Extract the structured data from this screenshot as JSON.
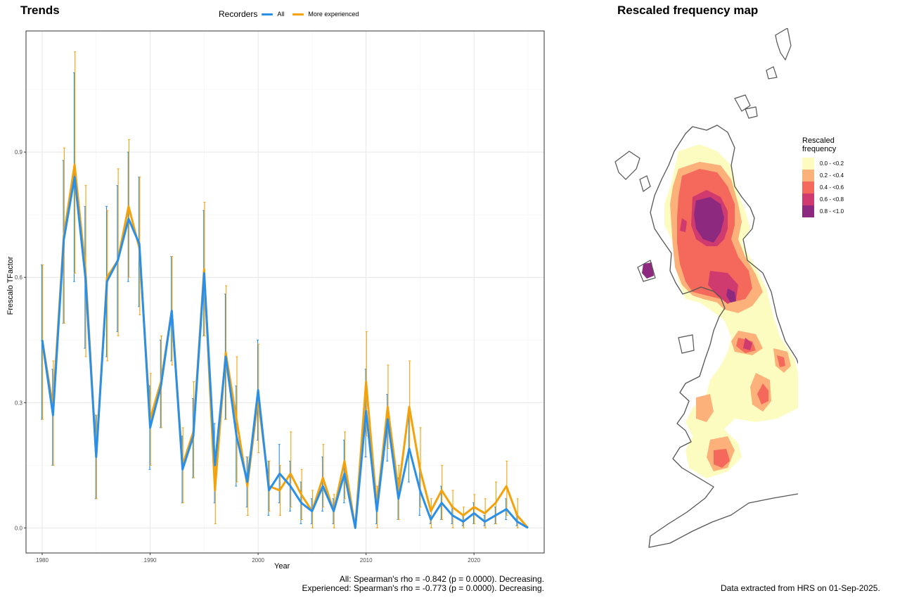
{
  "titles": {
    "trends": "Trends",
    "map": "Rescaled frequency map"
  },
  "recorder_legend": {
    "title": "Recorders",
    "items": [
      {
        "label": "All",
        "color": "#2a8fe8"
      },
      {
        "label": "More experienced",
        "color": "#f4a20c"
      }
    ]
  },
  "chart_data": {
    "type": "line",
    "xlabel": "Year",
    "ylabel": "Frescalo TFactor",
    "xlim": [
      1978.5,
      2026.5
    ],
    "ylim": [
      -0.06,
      1.19
    ],
    "xticks": [
      1980,
      1990,
      2000,
      2010,
      2020
    ],
    "yticks": [
      0.0,
      0.3,
      0.6,
      0.9
    ],
    "ytick_labels": [
      "0.0",
      "0.3",
      "0.6",
      "0.9"
    ],
    "grid": true,
    "legend_position": "top",
    "x": [
      1980,
      1981,
      1982,
      1983,
      1984,
      1985,
      1986,
      1987,
      1988,
      1989,
      1990,
      1991,
      1992,
      1993,
      1994,
      1995,
      1996,
      1997,
      1998,
      1999,
      2000,
      2001,
      2002,
      2003,
      2004,
      2005,
      2006,
      2007,
      2008,
      2009,
      2010,
      2011,
      2012,
      2013,
      2014,
      2015,
      2016,
      2017,
      2018,
      2019,
      2020,
      2021,
      2022,
      2023,
      2024,
      2025
    ],
    "series": [
      {
        "name": "All",
        "color": "#2a8fe8",
        "values": [
          0.45,
          0.27,
          0.69,
          0.84,
          0.6,
          0.17,
          0.59,
          0.64,
          0.74,
          0.68,
          0.24,
          0.34,
          0.52,
          0.14,
          0.22,
          0.61,
          0.15,
          0.41,
          0.22,
          0.11,
          0.33,
          0.09,
          0.13,
          0.1,
          0.06,
          0.04,
          0.1,
          0.04,
          0.13,
          0.0,
          0.28,
          0.04,
          0.26,
          0.07,
          0.19,
          0.09,
          0.02,
          0.06,
          0.03,
          0.015,
          0.035,
          0.015,
          0.03,
          0.045,
          0.015,
          0.0
        ],
        "lower": [
          0.26,
          0.15,
          0.49,
          0.59,
          0.43,
          0.07,
          0.41,
          0.47,
          0.59,
          0.53,
          0.14,
          0.24,
          0.4,
          0.06,
          0.12,
          0.46,
          0.06,
          0.26,
          0.1,
          0.05,
          0.21,
          0.03,
          0.06,
          0.04,
          0.01,
          0.01,
          0.04,
          0.01,
          0.06,
          0.0,
          0.17,
          0.01,
          0.16,
          0.02,
          0.11,
          0.03,
          0.01,
          0.02,
          0.01,
          0.005,
          0.01,
          0.005,
          0.01,
          0.02,
          0.005,
          0.0
        ],
        "upper": [
          0.63,
          0.38,
          0.88,
          1.09,
          0.77,
          0.27,
          0.77,
          0.82,
          0.9,
          0.84,
          0.34,
          0.45,
          0.65,
          0.22,
          0.31,
          0.76,
          0.25,
          0.56,
          0.34,
          0.17,
          0.45,
          0.16,
          0.2,
          0.16,
          0.11,
          0.07,
          0.17,
          0.07,
          0.21,
          0.0,
          0.38,
          0.08,
          0.32,
          0.12,
          0.27,
          0.15,
          0.03,
          0.1,
          0.05,
          0.03,
          0.06,
          0.03,
          0.05,
          0.07,
          0.03,
          0.0
        ]
      },
      {
        "name": "More experienced",
        "color": "#f4a20c",
        "values": [
          0.45,
          0.29,
          0.7,
          0.87,
          0.62,
          0.17,
          0.6,
          0.64,
          0.77,
          0.67,
          0.26,
          0.35,
          0.52,
          0.15,
          0.23,
          0.62,
          0.09,
          0.42,
          0.26,
          0.1,
          0.31,
          0.1,
          0.09,
          0.13,
          0.08,
          0.04,
          0.12,
          0.04,
          0.16,
          0.0,
          0.35,
          0.05,
          0.29,
          0.09,
          0.29,
          0.14,
          0.04,
          0.09,
          0.05,
          0.03,
          0.05,
          0.035,
          0.06,
          0.1,
          0.03,
          0.0
        ],
        "lower": [
          0.26,
          0.15,
          0.49,
          0.61,
          0.41,
          0.07,
          0.4,
          0.46,
          0.6,
          0.51,
          0.15,
          0.24,
          0.39,
          0.06,
          0.12,
          0.46,
          0.01,
          0.26,
          0.11,
          0.03,
          0.18,
          0.04,
          0.03,
          0.05,
          0.02,
          0.0,
          0.05,
          0.0,
          0.07,
          0.0,
          0.22,
          0.0,
          0.19,
          0.02,
          0.18,
          0.05,
          0.0,
          0.02,
          0.0,
          0.0,
          0.01,
          0.0,
          0.01,
          0.03,
          0.0,
          0.0
        ],
        "upper": [
          0.63,
          0.4,
          0.91,
          1.14,
          0.82,
          0.27,
          0.76,
          0.86,
          0.93,
          0.84,
          0.37,
          0.46,
          0.65,
          0.24,
          0.35,
          0.78,
          0.18,
          0.58,
          0.41,
          0.17,
          0.44,
          0.16,
          0.15,
          0.23,
          0.14,
          0.09,
          0.2,
          0.08,
          0.23,
          0.0,
          0.47,
          0.1,
          0.39,
          0.15,
          0.4,
          0.24,
          0.07,
          0.15,
          0.09,
          0.05,
          0.08,
          0.07,
          0.11,
          0.16,
          0.07,
          0.0
        ]
      }
    ]
  },
  "stats": {
    "all": "All: Spearman's rho = -0.842 (p = 0.0000). Decreasing.",
    "experienced": "Experienced: Spearman's rho = -0.773 (p = 0.0000). Decreasing."
  },
  "map_legend": {
    "title": "Rescaled frequency",
    "items": [
      {
        "label": "0.0 - <0.2",
        "color": "#fdfcc0"
      },
      {
        "label": "0.2 - <0.4",
        "color": "#fcb17a"
      },
      {
        "label": "0.4 - <0.6",
        "color": "#f4695c"
      },
      {
        "label": "0.6 - <0.8",
        "color": "#cf3a6f"
      },
      {
        "label": "0.8 - <1.0",
        "color": "#8d2a80"
      }
    ]
  },
  "footer": "Data extracted from HRS on 01-Sep-2025."
}
